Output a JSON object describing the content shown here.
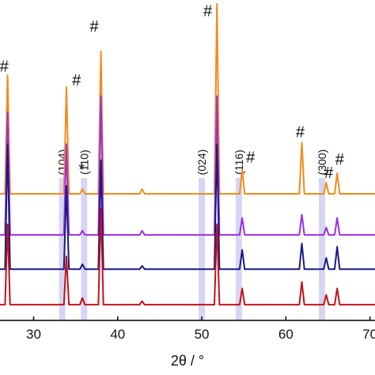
{
  "chart_data": {
    "type": "line",
    "xlabel": "2θ / °",
    "x": [
      26.0,
      26.6,
      26.9,
      27.2,
      33.6,
      33.9,
      34.2,
      35.5,
      35.8,
      36.1,
      37.7,
      38.0,
      38.3,
      42.6,
      42.9,
      43.2,
      51.5,
      51.8,
      52.1,
      54.5,
      54.8,
      55.1,
      61.6,
      61.9,
      62.2,
      64.5,
      64.8,
      65.1,
      65.8,
      66.1,
      66.4,
      70.6
    ],
    "series": [
      {
        "color": "#f28c1c",
        "values": [
          39.5,
          39.5,
          76.5,
          39.5,
          39.5,
          72.8,
          39.5,
          39.5,
          41,
          39.5,
          39.5,
          84,
          39.5,
          39.5,
          41,
          39.5,
          39.5,
          98.8,
          39.5,
          39.5,
          47,
          39.5,
          39.5,
          55.5,
          39.5,
          39.5,
          43,
          39.5,
          39.5,
          46,
          39.5,
          39.5
        ]
      },
      {
        "color": "#9b30e0",
        "values": [
          26.7,
          26.7,
          65,
          26.7,
          26.7,
          55,
          26.7,
          26.7,
          28,
          26.7,
          26.7,
          70,
          26.7,
          26.7,
          28,
          26.7,
          26.7,
          70,
          26.7,
          26.7,
          32,
          26.7,
          26.7,
          33,
          26.7,
          26.7,
          29,
          26.7,
          26.7,
          32,
          26.7,
          26.7
        ]
      },
      {
        "color": "#1a1a80",
        "values": [
          16,
          16,
          55,
          16,
          16,
          42,
          16,
          16,
          17.5,
          16,
          16,
          50,
          16,
          16,
          17,
          16,
          16,
          55,
          16,
          16,
          22,
          16,
          16,
          24,
          16,
          16,
          19.5,
          16,
          16,
          23,
          16,
          16
        ]
      },
      {
        "color": "#c0141c",
        "values": [
          4.9,
          4.9,
          30,
          4.9,
          4.9,
          20,
          4.9,
          4.9,
          7,
          4.9,
          4.9,
          35,
          4.9,
          4.9,
          6,
          4.9,
          4.9,
          30,
          4.9,
          4.9,
          10,
          4.9,
          4.9,
          12,
          4.9,
          4.9,
          8,
          4.9,
          4.9,
          10,
          4.9,
          4.9
        ]
      }
    ],
    "xlim": [
      26,
      70.6
    ],
    "ylim": [
      0,
      100
    ],
    "xticks": [
      30,
      40,
      50,
      60,
      70
    ],
    "bands": [
      {
        "x": 33.4,
        "label": "(104)"
      },
      {
        "x": 36.0,
        "label": "(110)"
      },
      {
        "x": 50.0,
        "label": "(024)"
      },
      {
        "x": 54.4,
        "label": "(116)"
      },
      {
        "x": 64.3,
        "label": "(300)"
      }
    ],
    "markers": [
      {
        "text": "#",
        "x": 26.5,
        "y": 79
      },
      {
        "text": "#",
        "x": 35.1,
        "y": 74.6
      },
      {
        "text": "#",
        "x": 37.2,
        "y": 91.4
      },
      {
        "text": "#",
        "x": 50.7,
        "y": 96.3
      },
      {
        "text": "#",
        "x": 55.8,
        "y": 50.6
      },
      {
        "text": "#",
        "x": 61.7,
        "y": 58.5
      },
      {
        "text": "#",
        "x": 65.1,
        "y": 45.7
      },
      {
        "text": "#",
        "x": 66.4,
        "y": 50
      },
      {
        "text": "*",
        "x": 35.7,
        "y": 46.9
      }
    ]
  }
}
